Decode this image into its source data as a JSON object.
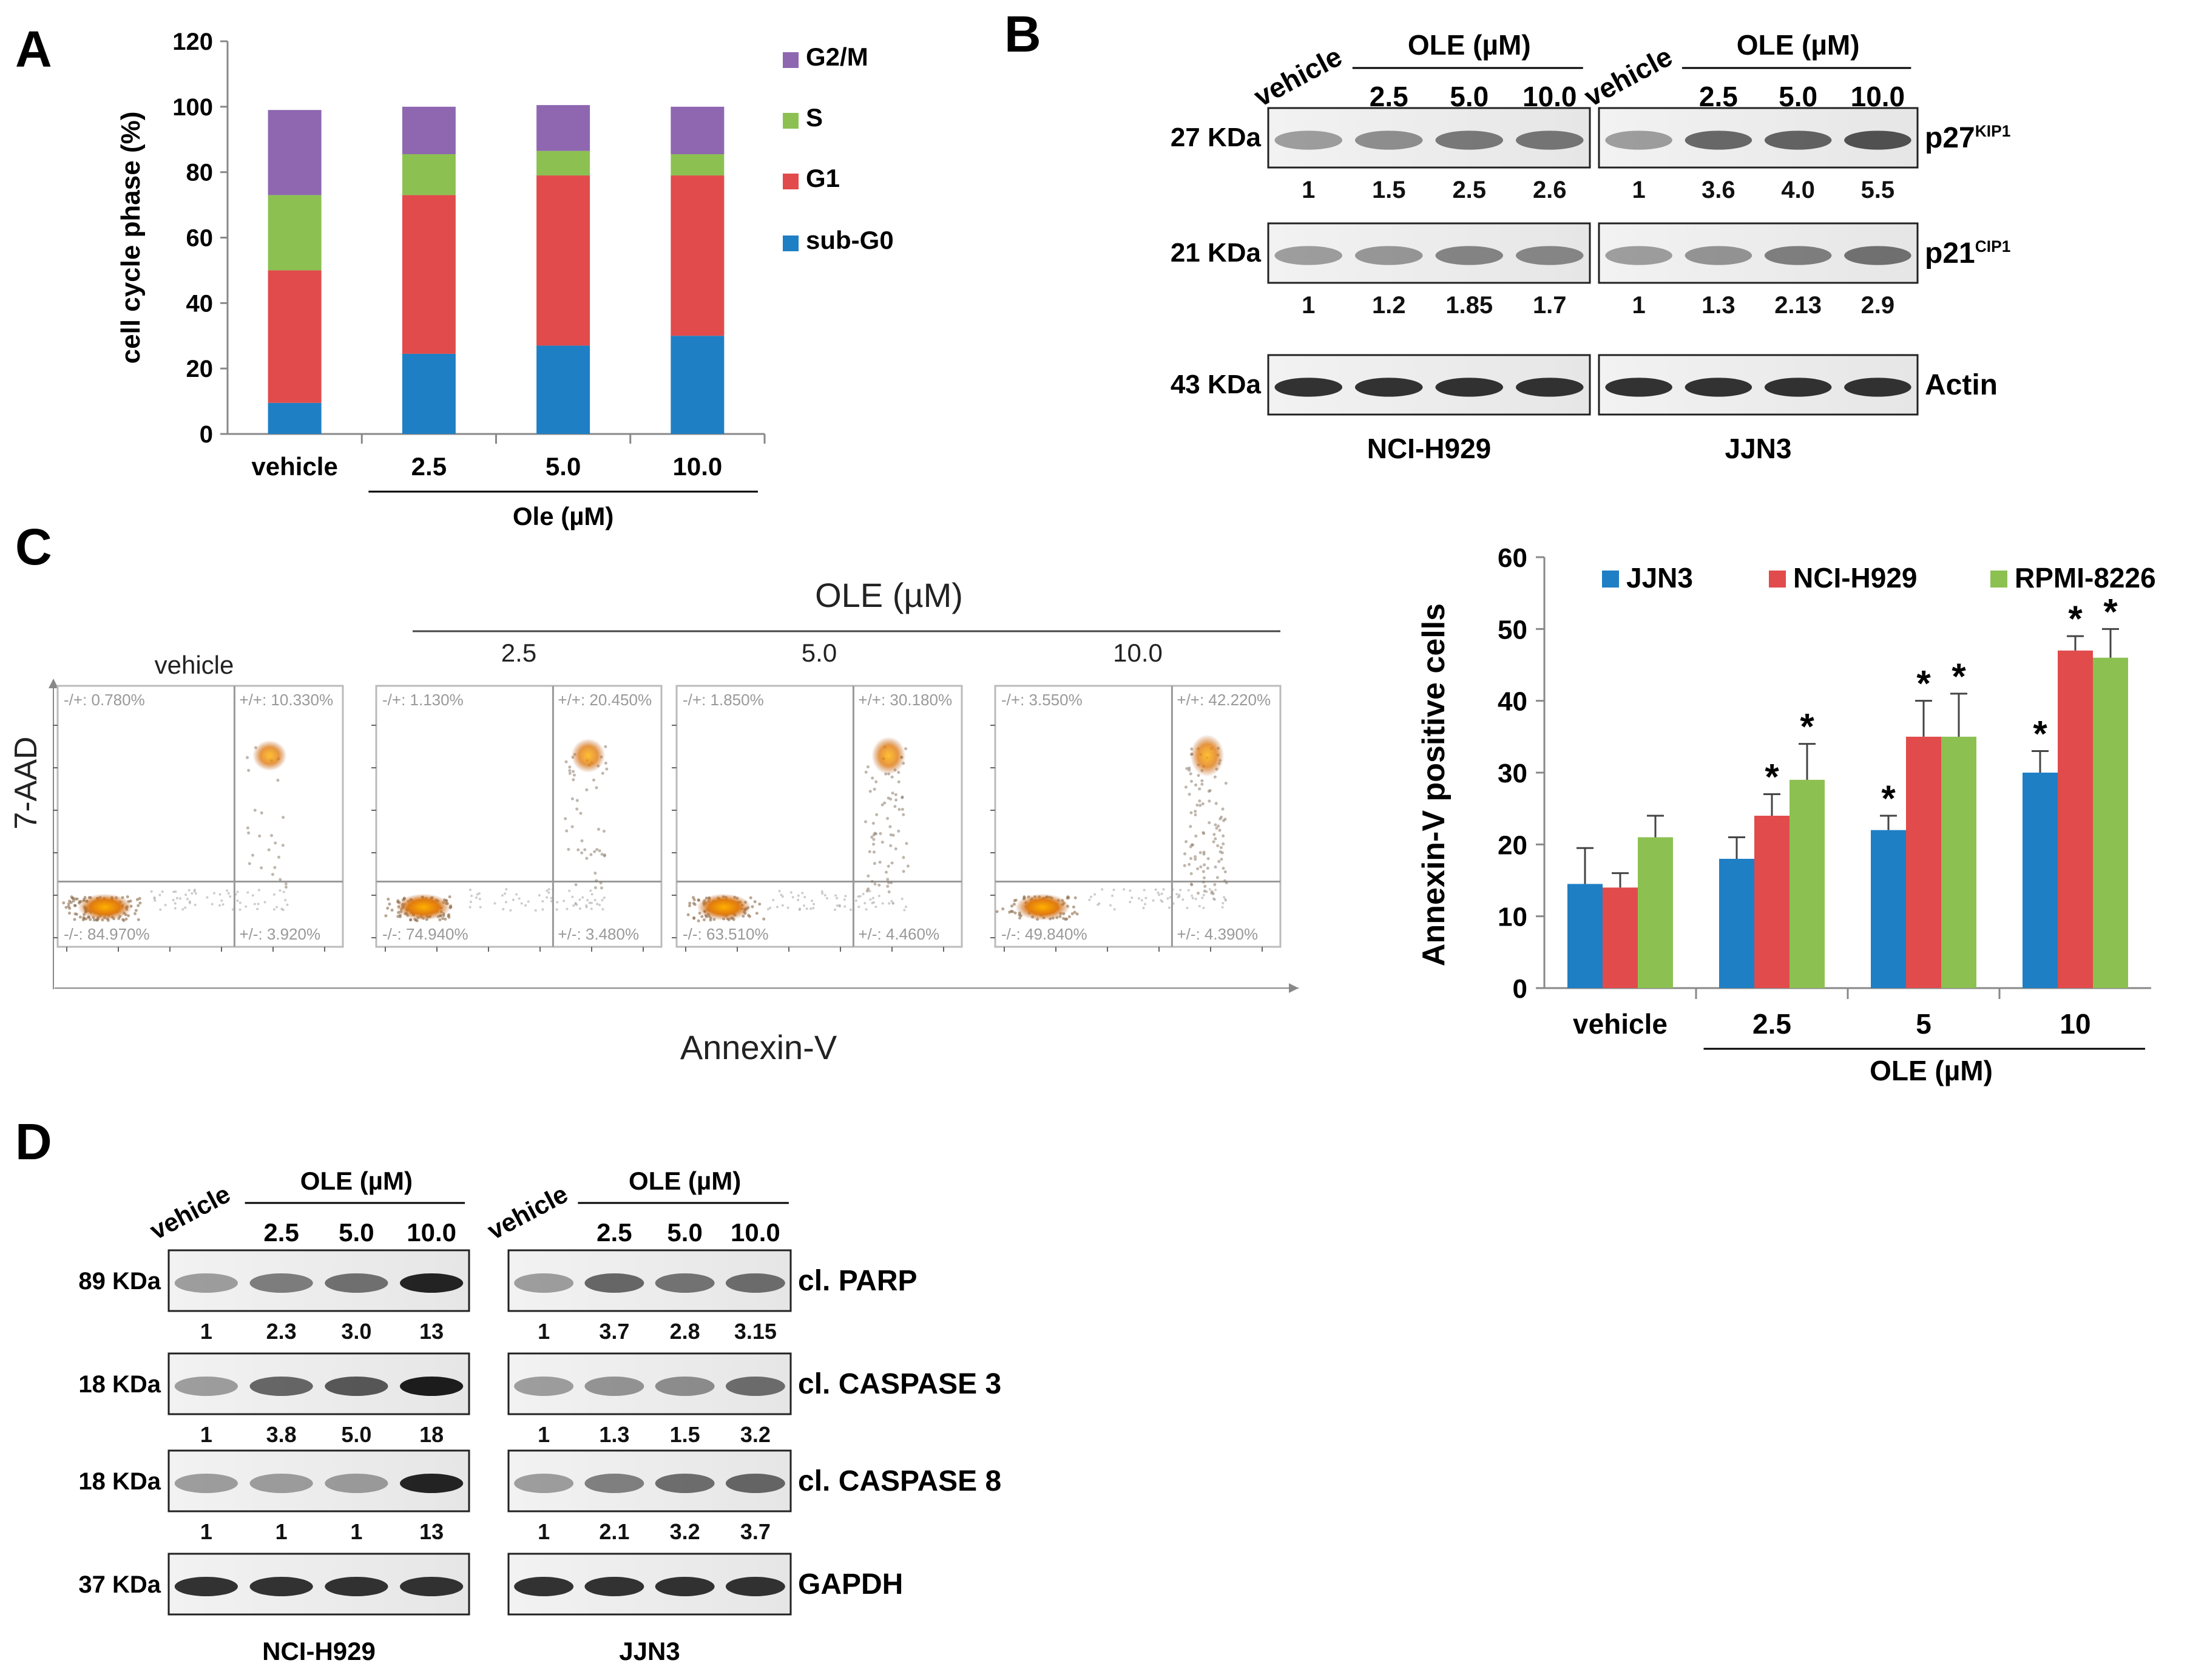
{
  "panels": {
    "A": "A",
    "B": "B",
    "C": "C",
    "D": "D"
  },
  "colors": {
    "blue": "#1f7fc4",
    "red": "#e14b4b",
    "green": "#8cc152",
    "purple": "#8e67b0"
  },
  "chart_data": [
    {
      "id": "A",
      "type": "bar",
      "stacked": true,
      "title": "",
      "ylabel": "cell cycle phase (%)",
      "xlabel": "Ole (µM)",
      "categories": [
        "vehicle",
        "2.5",
        "5.0",
        "10.0"
      ],
      "ylim": [
        0,
        120
      ],
      "yticks": [
        0,
        20,
        40,
        60,
        80,
        100,
        120
      ],
      "series": [
        {
          "name": "sub-G0",
          "color": "#1f7fc4",
          "values": [
            9.5,
            24.5,
            27,
            30
          ]
        },
        {
          "name": "G1",
          "color": "#e14b4b",
          "values": [
            40.5,
            48.5,
            52,
            49
          ]
        },
        {
          "name": "S",
          "color": "#8cc152",
          "values": [
            23,
            12.5,
            7.5,
            6.5
          ]
        },
        {
          "name": "G2/M",
          "color": "#8e67b0",
          "values": [
            26,
            14.5,
            14,
            14.5
          ]
        }
      ],
      "legend_order": [
        "G2/M",
        "S",
        "G1",
        "sub-G0"
      ],
      "legend": "right"
    },
    {
      "id": "C-bar",
      "type": "bar",
      "ylabel": "Annexin-V positive cells",
      "xlabel": "OLE (µM)",
      "categories": [
        "vehicle",
        "2.5",
        "5",
        "10"
      ],
      "ylim": [
        0,
        60
      ],
      "yticks": [
        0,
        10,
        20,
        30,
        40,
        50,
        60
      ],
      "series": [
        {
          "name": "JJN3",
          "color": "#1f7fc4",
          "values": [
            14.5,
            18,
            22,
            30
          ],
          "errors": [
            5,
            3,
            2,
            3
          ],
          "significant": [
            false,
            false,
            true,
            true
          ]
        },
        {
          "name": "NCI-H929",
          "color": "#e14b4b",
          "values": [
            14,
            24,
            35,
            47
          ],
          "errors": [
            2,
            3,
            5,
            2
          ],
          "significant": [
            false,
            true,
            true,
            true
          ]
        },
        {
          "name": "RPMI-8226",
          "color": "#8cc152",
          "values": [
            21,
            29,
            35,
            46
          ],
          "errors": [
            3,
            5,
            6,
            4
          ],
          "significant": [
            false,
            true,
            true,
            true
          ]
        }
      ],
      "sig_marker": "*",
      "legend": "top"
    },
    {
      "id": "C-flow",
      "type": "scatter",
      "title": "OLE (µM)",
      "xlabel": "Annexin-V",
      "ylabel": "7-AAD",
      "plots": [
        {
          "label": "vehicle",
          "ul": "-/+: 0.780%",
          "ur": "+/+: 10.330%",
          "ll": "-/-: 84.970%",
          "lr": "+/-: 3.920%"
        },
        {
          "label": "2.5",
          "ul": "-/+: 1.130%",
          "ur": "+/+: 20.450%",
          "ll": "-/-: 74.940%",
          "lr": "+/-: 3.480%"
        },
        {
          "label": "5.0",
          "ul": "-/+: 1.850%",
          "ur": "+/+: 30.180%",
          "ll": "-/-: 63.510%",
          "lr": "+/-: 4.460%"
        },
        {
          "label": "10.0",
          "ul": "-/+: 3.550%",
          "ur": "+/+: 42.220%",
          "ll": "-/-: 49.840%",
          "lr": "+/-: 4.390%"
        }
      ]
    }
  ],
  "blotB": {
    "header": {
      "vehicle": "vehicle",
      "ole": "OLE (µM)",
      "d1": "2.5",
      "d2": "5.0",
      "d3": "10.0"
    },
    "cells": [
      "NCI-H929",
      "JJN3"
    ],
    "rows": [
      {
        "kda": "27 KDa",
        "prot": "p27",
        "sup": "KIP1",
        "left": [
          "1",
          "1.5",
          "2.5",
          "2.6"
        ],
        "right": [
          "1",
          "3.6",
          "4.0",
          "5.5"
        ]
      },
      {
        "kda": "21 KDa",
        "prot": "p21",
        "sup": "CIP1",
        "left": [
          "1",
          "1.2",
          "1.85",
          "1.7"
        ],
        "right": [
          "1",
          "1.3",
          "2.13",
          "2.9"
        ]
      },
      {
        "kda": "43 KDa",
        "prot": "Actin",
        "sup": "",
        "left": [],
        "right": []
      }
    ]
  },
  "blotD": {
    "header": {
      "vehicle": "vehicle",
      "ole": "OLE (µM)",
      "d1": "2.5",
      "d2": "5.0",
      "d3": "10.0"
    },
    "cells": [
      "NCI-H929",
      "JJN3"
    ],
    "rows": [
      {
        "kda": "89 KDa",
        "prot": "cl. PARP",
        "left": [
          "1",
          "2.3",
          "3.0",
          "13"
        ],
        "right": [
          "1",
          "3.7",
          "2.8",
          "3.15"
        ]
      },
      {
        "kda": "18 KDa",
        "prot": "cl. CASPASE 3",
        "left": [
          "1",
          "3.8",
          "5.0",
          "18"
        ],
        "right": [
          "1",
          "1.3",
          "1.5",
          "3.2"
        ]
      },
      {
        "kda": "18 KDa",
        "prot": "cl. CASPASE 8",
        "left": [
          "1",
          "1",
          "1",
          "13"
        ],
        "right": [
          "1",
          "2.1",
          "3.2",
          "3.7"
        ]
      },
      {
        "kda": "37 KDa",
        "prot": "GAPDH",
        "left": [],
        "right": []
      }
    ]
  }
}
